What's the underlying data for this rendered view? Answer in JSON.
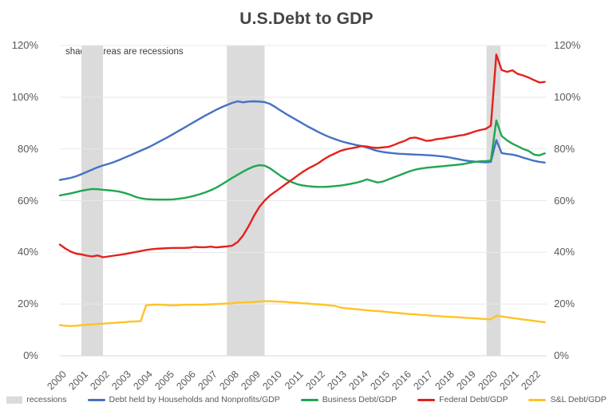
{
  "title": "U.S.Debt to GDP",
  "annotation": "shaded areas are recessions",
  "chart_data": {
    "type": "line",
    "title": "U.S.Debt to GDP",
    "x_start": 2000,
    "x_step": 0.25,
    "x_tick_labels": [
      "2000",
      "2001",
      "2002",
      "2003",
      "2004",
      "2005",
      "2006",
      "2007",
      "2008",
      "2009",
      "2010",
      "2011",
      "2012",
      "2013",
      "2014",
      "2015",
      "2016",
      "2017",
      "2018",
      "2019",
      "2020",
      "2021",
      "2022"
    ],
    "y_tick_labels": [
      "0%",
      "20%",
      "40%",
      "60%",
      "80%",
      "100%",
      "120%"
    ],
    "y_tick_values": [
      0,
      20,
      40,
      60,
      80,
      100,
      120
    ],
    "ylim": [
      0,
      120
    ],
    "grid": true,
    "legend_position": "bottom",
    "recession_bands": [
      [
        2001.0,
        2002.0
      ],
      [
        2007.75,
        2009.5
      ],
      [
        2019.8,
        2020.45
      ]
    ],
    "series": [
      {
        "name": "Debt held by Households and Nonprofits/GDP",
        "color": "#4472C4",
        "values": [
          68.0,
          68.4,
          68.8,
          69.4,
          70.2,
          71.1,
          72.0,
          72.9,
          73.6,
          74.2,
          74.9,
          75.7,
          76.6,
          77.5,
          78.4,
          79.3,
          80.2,
          81.2,
          82.3,
          83.4,
          84.5,
          85.7,
          86.9,
          88.1,
          89.3,
          90.5,
          91.7,
          92.9,
          94.0,
          95.1,
          96.1,
          97.0,
          97.8,
          98.4,
          98.0,
          98.3,
          98.4,
          98.3,
          98.1,
          97.4,
          96.2,
          94.8,
          93.5,
          92.3,
          91.1,
          89.9,
          88.7,
          87.6,
          86.5,
          85.5,
          84.6,
          83.8,
          83.1,
          82.5,
          82.0,
          81.5,
          81.1,
          80.5,
          79.8,
          79.2,
          78.8,
          78.5,
          78.3,
          78.1,
          78.0,
          77.9,
          77.8,
          77.7,
          77.6,
          77.5,
          77.3,
          77.1,
          76.8,
          76.4,
          76.0,
          75.6,
          75.3,
          75.1,
          74.9,
          74.8,
          75.0,
          83.4,
          78.4,
          78.0,
          77.8,
          77.3,
          76.6,
          76.0,
          75.4,
          75.0,
          74.7
        ]
      },
      {
        "name": "Business Debt/GDP",
        "color": "#1EA750",
        "values": [
          62.0,
          62.4,
          62.8,
          63.3,
          63.8,
          64.2,
          64.5,
          64.4,
          64.2,
          64.0,
          63.8,
          63.5,
          63.0,
          62.3,
          61.5,
          60.9,
          60.6,
          60.5,
          60.4,
          60.4,
          60.4,
          60.5,
          60.7,
          61.0,
          61.4,
          61.9,
          62.5,
          63.2,
          64.0,
          65.0,
          66.2,
          67.5,
          68.8,
          70.0,
          71.2,
          72.3,
          73.2,
          73.7,
          73.5,
          72.5,
          71.0,
          69.5,
          68.2,
          67.2,
          66.4,
          65.9,
          65.6,
          65.4,
          65.3,
          65.3,
          65.4,
          65.6,
          65.8,
          66.1,
          66.5,
          66.9,
          67.5,
          68.2,
          67.6,
          67.0,
          67.4,
          68.2,
          69.0,
          69.8,
          70.6,
          71.4,
          72.0,
          72.4,
          72.7,
          72.9,
          73.1,
          73.3,
          73.5,
          73.7,
          73.9,
          74.2,
          74.6,
          75.0,
          75.2,
          75.3,
          75.5,
          91.0,
          85.0,
          83.3,
          82.0,
          81.0,
          80.0,
          79.2,
          77.8,
          77.5,
          78.3
        ]
      },
      {
        "name": "Federal Debt/GDP",
        "color": "#E4211C",
        "values": [
          43.0,
          41.5,
          40.3,
          39.5,
          39.2,
          38.7,
          38.4,
          38.8,
          38.1,
          38.4,
          38.7,
          39.0,
          39.3,
          39.7,
          40.1,
          40.5,
          40.9,
          41.2,
          41.4,
          41.5,
          41.6,
          41.7,
          41.7,
          41.7,
          41.8,
          42.1,
          42.0,
          42.0,
          42.2,
          41.9,
          42.1,
          42.3,
          42.6,
          44.0,
          46.5,
          50.0,
          54.0,
          57.5,
          60.0,
          62.0,
          63.5,
          65.0,
          66.5,
          68.0,
          69.5,
          71.0,
          72.3,
          73.4,
          74.5,
          76.0,
          77.2,
          78.2,
          79.2,
          79.8,
          80.2,
          80.6,
          81.1,
          80.9,
          80.5,
          80.4,
          80.6,
          80.8,
          81.5,
          82.4,
          83.1,
          84.2,
          84.4,
          83.8,
          83.1,
          83.3,
          83.8,
          84.0,
          84.4,
          84.7,
          85.1,
          85.4,
          86.0,
          86.7,
          87.3,
          87.7,
          89.0,
          116.5,
          110.5,
          109.8,
          110.4,
          109.0,
          108.4,
          107.6,
          106.6,
          105.7,
          105.9
        ]
      },
      {
        "name": "S&L Debt/GDP",
        "color": "#FFC323",
        "values": [
          11.9,
          11.6,
          11.5,
          11.6,
          11.8,
          12.0,
          12.1,
          12.3,
          12.4,
          12.6,
          12.7,
          12.9,
          13.0,
          13.2,
          13.3,
          13.4,
          19.5,
          19.7,
          19.8,
          19.7,
          19.6,
          19.5,
          19.6,
          19.7,
          19.7,
          19.8,
          19.7,
          19.8,
          19.9,
          20.0,
          20.1,
          20.2,
          20.3,
          20.5,
          20.6,
          20.7,
          20.8,
          21.0,
          21.1,
          21.1,
          21.0,
          20.9,
          20.8,
          20.6,
          20.5,
          20.3,
          20.2,
          20.0,
          19.9,
          19.7,
          19.5,
          19.3,
          18.7,
          18.4,
          18.2,
          18.0,
          17.8,
          17.6,
          17.4,
          17.3,
          17.1,
          16.9,
          16.7,
          16.5,
          16.3,
          16.1,
          16.0,
          15.8,
          15.7,
          15.5,
          15.4,
          15.2,
          15.1,
          15.0,
          14.9,
          14.7,
          14.6,
          14.5,
          14.3,
          14.2,
          14.1,
          15.5,
          15.2,
          14.9,
          14.6,
          14.3,
          14.0,
          13.8,
          13.5,
          13.2,
          13.0
        ]
      }
    ],
    "legend": [
      {
        "label": "recessions",
        "swatch": "patch",
        "color": "#DBDBDB"
      },
      {
        "label": "Debt held by Households and Nonprofits/GDP",
        "swatch": "line",
        "color": "#4472C4"
      },
      {
        "label": "Business Debt/GDP",
        "swatch": "line",
        "color": "#1EA750"
      },
      {
        "label": "Federal Debt/GDP",
        "swatch": "line",
        "color": "#E4211C"
      },
      {
        "label": "S&L Debt/GDP",
        "swatch": "line",
        "color": "#FFC323"
      }
    ],
    "colors": {
      "recession_band": "#DBDBDB",
      "gridline": "#E8E8E8",
      "axis_line": "#D9D9D9",
      "axis_text": "#595959",
      "title_text": "#454545"
    }
  }
}
